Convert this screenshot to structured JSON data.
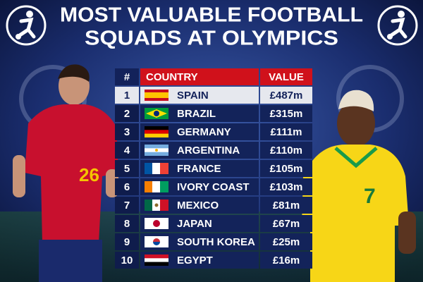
{
  "header": {
    "title_line1": "MOST VALUABLE FOOTBALL",
    "title_line2": "SQUADS AT OLYMPICS"
  },
  "table": {
    "columns": [
      "#",
      "COUNTRY",
      "VALUE"
    ],
    "rows": [
      [
        "1",
        "SPAIN",
        "£487m"
      ],
      [
        "2",
        "BRAZIL",
        "£315m"
      ],
      [
        "3",
        "GERMANY",
        "£111m"
      ],
      [
        "4",
        "ARGENTINA",
        "£110m"
      ],
      [
        "5",
        "FRANCE",
        "£105m"
      ],
      [
        "6",
        "IVORY COAST",
        "£103m"
      ],
      [
        "7",
        "MEXICO",
        "£81m"
      ],
      [
        "8",
        "JAPAN",
        "£67m"
      ],
      [
        "9",
        "SOUTH KOREA",
        "£25m"
      ],
      [
        "10",
        "EGYPT",
        "£16m"
      ]
    ]
  }
}
